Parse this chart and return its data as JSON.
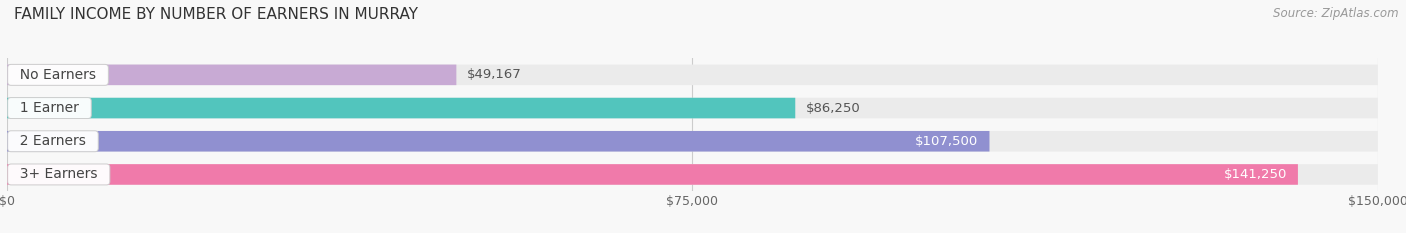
{
  "title": "FAMILY INCOME BY NUMBER OF EARNERS IN MURRAY",
  "source": "Source: ZipAtlas.com",
  "categories": [
    "No Earners",
    "1 Earner",
    "2 Earners",
    "3+ Earners"
  ],
  "values": [
    49167,
    86250,
    107500,
    141250
  ],
  "max_value": 150000,
  "bar_colors": [
    "#c8aad4",
    "#52c5bd",
    "#9090d0",
    "#f07aaa"
  ],
  "bg_bar_color": "#ebebeb",
  "value_labels": [
    "$49,167",
    "$86,250",
    "$107,500",
    "$141,250"
  ],
  "value_label_inside": [
    false,
    false,
    true,
    true
  ],
  "x_ticks": [
    0,
    75000,
    150000
  ],
  "x_tick_labels": [
    "$0",
    "$75,000",
    "$150,000"
  ],
  "background_color": "#f8f8f8",
  "title_fontsize": 11,
  "source_fontsize": 8.5,
  "label_fontsize": 10,
  "value_fontsize": 9.5
}
